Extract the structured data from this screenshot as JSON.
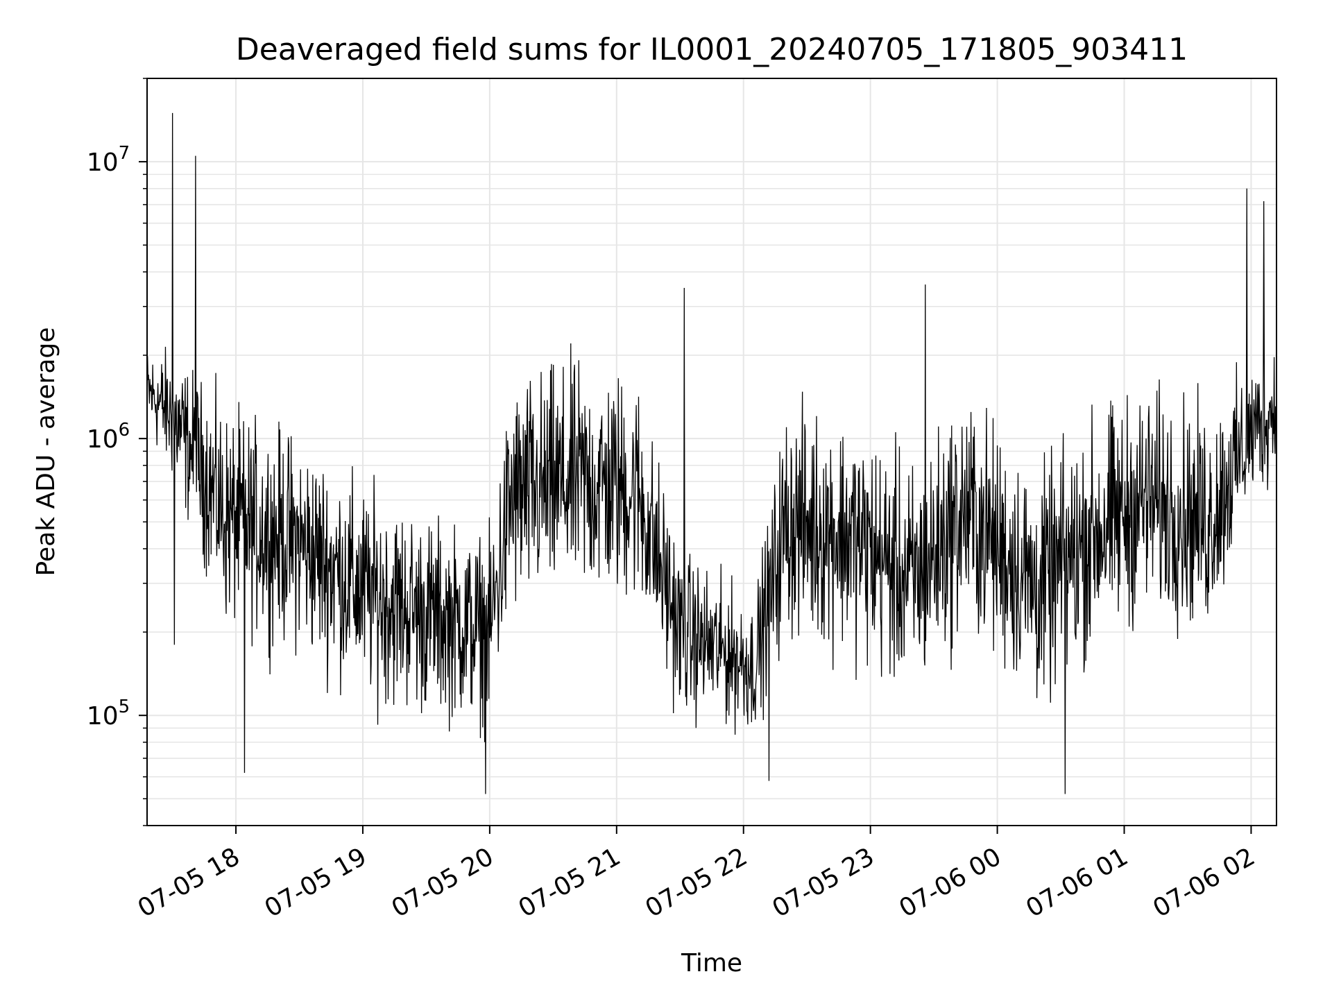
{
  "chart_data": {
    "type": "line",
    "title": "Deaveraged field sums for IL0001_20240705_171805_903411",
    "xlabel": "Time",
    "ylabel": "Peak ADU - average",
    "xlim": [
      "2024-07-05 17:18",
      "2024-07-06 02:12"
    ],
    "ylim": [
      40000,
      20000000
    ],
    "yscale": "log",
    "grid": true,
    "line_color": "#000000",
    "grid_color": "#e6e6e6",
    "x_ticks": [
      "07-05 18",
      "07-05 19",
      "07-05 20",
      "07-05 21",
      "07-05 22",
      "07-05 23",
      "07-06 00",
      "07-06 01",
      "07-06 02"
    ],
    "y_ticks": [
      {
        "value": 100000,
        "base": "10",
        "exp": "5"
      },
      {
        "value": 1000000,
        "base": "10",
        "exp": "6"
      },
      {
        "value": 10000000,
        "base": "10",
        "exp": "7"
      }
    ],
    "series": [
      {
        "envelope": [
          {
            "t": "2024-07-05 17:18",
            "median": 1500000,
            "spread": 0.18
          },
          {
            "t": "2024-07-05 17:30",
            "median": 1200000,
            "spread": 0.28
          },
          {
            "t": "2024-07-05 17:45",
            "median": 750000,
            "spread": 0.38
          },
          {
            "t": "2024-07-05 17:55",
            "median": 520000,
            "spread": 0.45
          },
          {
            "t": "2024-07-05 18:30",
            "median": 420000,
            "spread": 0.45
          },
          {
            "t": "2024-07-05 19:00",
            "median": 280000,
            "spread": 0.45
          },
          {
            "t": "2024-07-05 19:30",
            "median": 230000,
            "spread": 0.42
          },
          {
            "t": "2024-07-05 20:00",
            "median": 200000,
            "spread": 0.4
          },
          {
            "t": "2024-07-05 20:10",
            "median": 600000,
            "spread": 0.5
          },
          {
            "t": "2024-07-05 20:40",
            "median": 700000,
            "spread": 0.5
          },
          {
            "t": "2024-07-05 21:10",
            "median": 650000,
            "spread": 0.48
          },
          {
            "t": "2024-07-05 21:30",
            "median": 200000,
            "spread": 0.35
          },
          {
            "t": "2024-07-05 22:05",
            "median": 150000,
            "spread": 0.28
          },
          {
            "t": "2024-07-05 22:20",
            "median": 500000,
            "spread": 0.48
          },
          {
            "t": "2024-07-05 22:50",
            "median": 450000,
            "spread": 0.5
          },
          {
            "t": "2024-07-05 23:20",
            "median": 300000,
            "spread": 0.5
          },
          {
            "t": "2024-07-05 23:45",
            "median": 550000,
            "spread": 0.5
          },
          {
            "t": "2024-07-06 00:20",
            "median": 280000,
            "spread": 0.5
          },
          {
            "t": "2024-07-06 00:45",
            "median": 450000,
            "spread": 0.5
          },
          {
            "t": "2024-07-06 01:10",
            "median": 600000,
            "spread": 0.48
          },
          {
            "t": "2024-07-06 01:40",
            "median": 500000,
            "spread": 0.48
          },
          {
            "t": "2024-07-06 02:00",
            "median": 1050000,
            "spread": 0.3
          },
          {
            "t": "2024-07-06 02:12",
            "median": 1300000,
            "spread": 0.3
          }
        ],
        "spikes": [
          {
            "t": "2024-07-05 17:30",
            "value": 15000000
          },
          {
            "t": "2024-07-05 17:41",
            "value": 10500000
          },
          {
            "t": "2024-07-05 17:31",
            "value": 180000
          },
          {
            "t": "2024-07-05 18:04",
            "value": 62000
          },
          {
            "t": "2024-07-05 19:58",
            "value": 52000
          },
          {
            "t": "2024-07-05 21:32",
            "value": 3500000
          },
          {
            "t": "2024-07-05 22:12",
            "value": 58000
          },
          {
            "t": "2024-07-05 23:26",
            "value": 3600000
          },
          {
            "t": "2024-07-06 00:32",
            "value": 52000
          },
          {
            "t": "2024-07-06 01:58",
            "value": 8000000
          },
          {
            "t": "2024-07-06 02:06",
            "value": 7200000
          }
        ]
      }
    ]
  }
}
